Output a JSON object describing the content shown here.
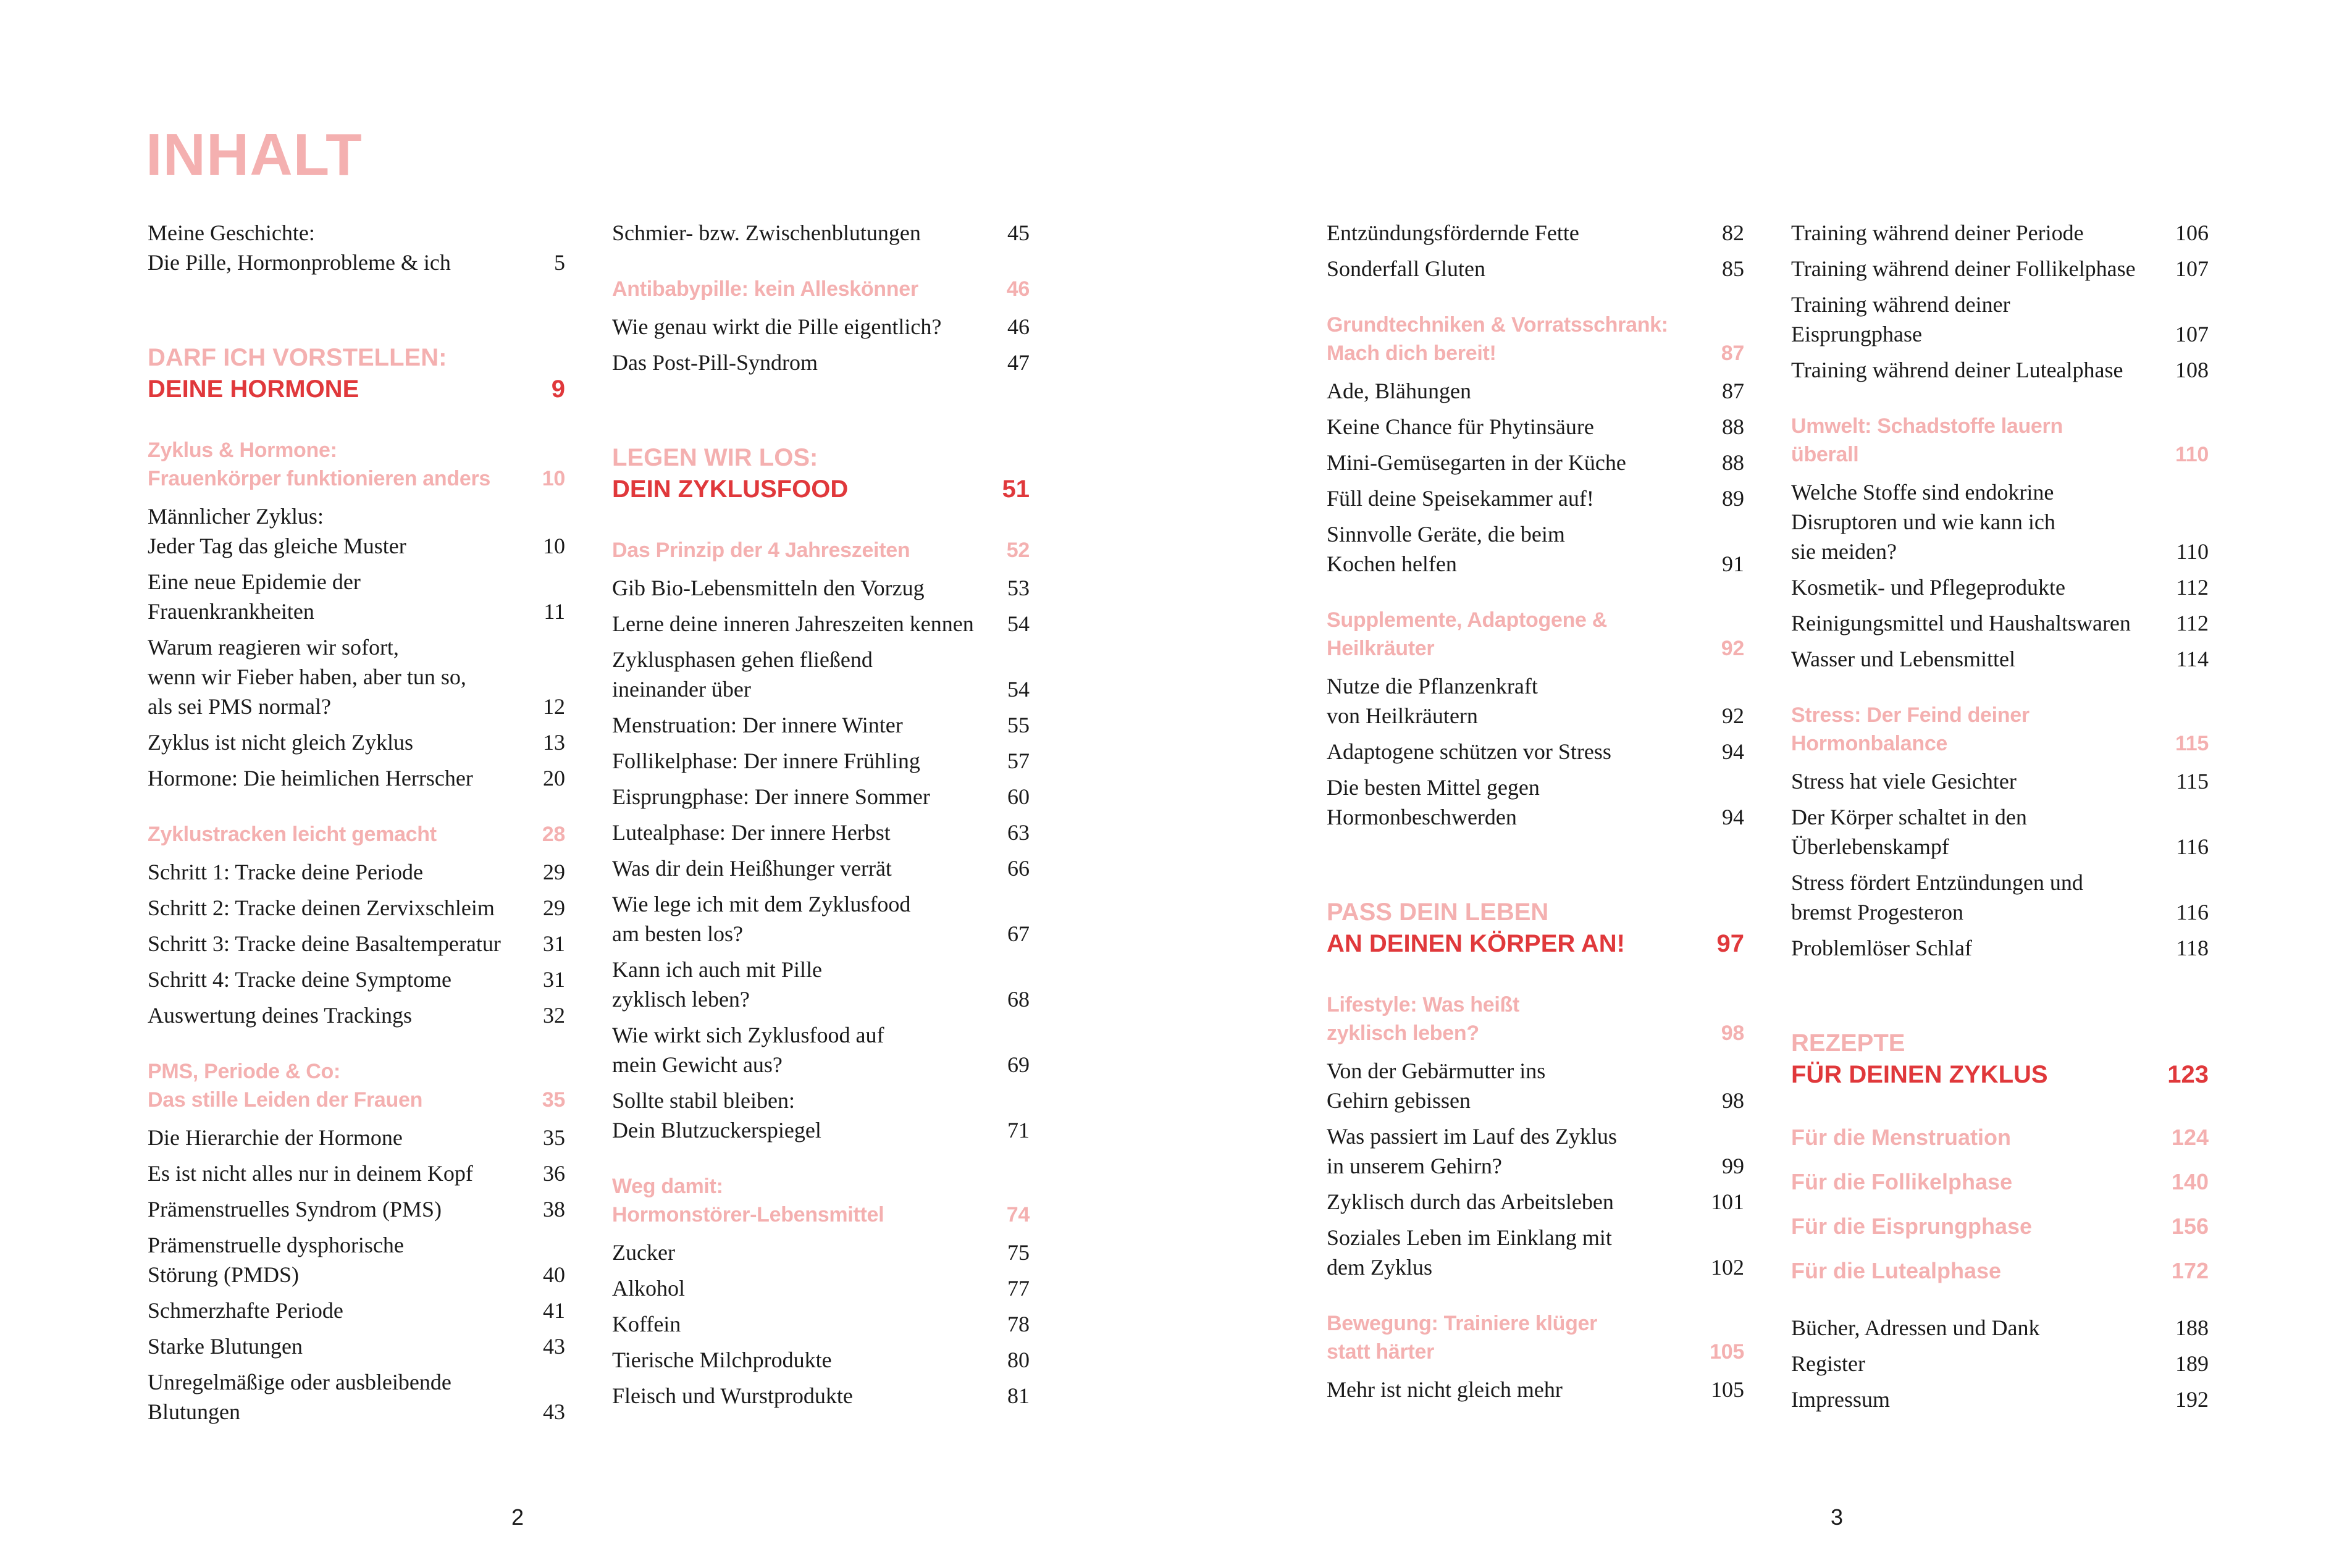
{
  "title": "INHALT",
  "colors": {
    "pink": "#f4b0b0",
    "red": "#e0383b",
    "text": "#1a1a1a"
  },
  "page_numbers": {
    "left": "2",
    "right": "3"
  },
  "columns": [
    [
      {
        "type": "entry",
        "lines": [
          "Meine Geschichte:",
          "Die Pille, Hormonprobleme & ich"
        ],
        "page": "5"
      },
      {
        "type": "part",
        "lines": [
          "DARF ICH VORSTELLEN:",
          "DEINE HORMONE"
        ],
        "page": "9"
      },
      {
        "type": "section",
        "lines": [
          "Zyklus & Hormone:",
          "Frauenkörper funktionieren anders"
        ],
        "page": "10"
      },
      {
        "type": "entry",
        "lines": [
          "Männlicher Zyklus:",
          "Jeder Tag das gleiche Muster"
        ],
        "page": "10"
      },
      {
        "type": "entry",
        "lines": [
          "Eine neue Epidemie der",
          "Frauenkrankheiten"
        ],
        "page": "11"
      },
      {
        "type": "entry",
        "lines": [
          "Warum reagieren wir sofort,",
          "wenn wir Fieber haben, aber tun so,",
          "als sei PMS normal?"
        ],
        "page": "12"
      },
      {
        "type": "entry",
        "lines": [
          "Zyklus ist nicht gleich Zyklus"
        ],
        "page": "13"
      },
      {
        "type": "entry",
        "lines": [
          "Hormone: Die heimlichen Herrscher"
        ],
        "page": "20"
      },
      {
        "type": "section",
        "lines": [
          "Zyklustracken leicht gemacht"
        ],
        "page": "28"
      },
      {
        "type": "entry",
        "lines": [
          "Schritt 1: Tracke deine Periode"
        ],
        "page": "29"
      },
      {
        "type": "entry",
        "lines": [
          "Schritt 2: Tracke deinen Zervixschleim"
        ],
        "page": "29"
      },
      {
        "type": "entry",
        "lines": [
          "Schritt 3: Tracke deine Basaltemperatur"
        ],
        "page": "31"
      },
      {
        "type": "entry",
        "lines": [
          "Schritt 4: Tracke deine Symptome"
        ],
        "page": "31"
      },
      {
        "type": "entry",
        "lines": [
          "Auswertung deines Trackings"
        ],
        "page": "32"
      },
      {
        "type": "section",
        "lines": [
          "PMS, Periode & Co:",
          "Das stille Leiden der Frauen"
        ],
        "page": "35"
      },
      {
        "type": "entry",
        "lines": [
          "Die Hierarchie der Hormone"
        ],
        "page": "35"
      },
      {
        "type": "entry",
        "lines": [
          "Es ist nicht alles nur in deinem Kopf"
        ],
        "page": "36"
      },
      {
        "type": "entry",
        "lines": [
          "Prämenstruelles Syndrom (PMS)"
        ],
        "page": "38"
      },
      {
        "type": "entry",
        "lines": [
          "Prämenstruelle dysphorische",
          "Störung (PMDS)"
        ],
        "page": "40"
      },
      {
        "type": "entry",
        "lines": [
          "Schmerzhafte Periode"
        ],
        "page": "41"
      },
      {
        "type": "entry",
        "lines": [
          "Starke Blutungen"
        ],
        "page": "43"
      },
      {
        "type": "entry",
        "lines": [
          "Unregelmäßige oder ausbleibende",
          "Blutungen"
        ],
        "page": "43"
      }
    ],
    [
      {
        "type": "entry",
        "lines": [
          "Schmier- bzw. Zwischenblutungen"
        ],
        "page": "45"
      },
      {
        "type": "section",
        "lines": [
          "Antibabypille: kein Alleskönner"
        ],
        "page": "46"
      },
      {
        "type": "entry",
        "lines": [
          "Wie genau wirkt die Pille eigentlich?"
        ],
        "page": "46"
      },
      {
        "type": "entry",
        "lines": [
          "Das Post-Pill-Syndrom"
        ],
        "page": "47"
      },
      {
        "type": "part",
        "lines": [
          "LEGEN WIR LOS:",
          "DEIN ZYKLUSFOOD"
        ],
        "page": "51"
      },
      {
        "type": "section",
        "lines": [
          "Das Prinzip der 4 Jahreszeiten"
        ],
        "page": "52"
      },
      {
        "type": "entry",
        "lines": [
          "Gib Bio-Lebensmitteln den Vorzug"
        ],
        "page": "53"
      },
      {
        "type": "entry",
        "lines": [
          "Lerne deine inneren Jahreszeiten kennen"
        ],
        "page": "54"
      },
      {
        "type": "entry",
        "lines": [
          "Zyklusphasen gehen fließend",
          "ineinander über"
        ],
        "page": "54"
      },
      {
        "type": "entry",
        "lines": [
          "Menstruation: Der innere Winter"
        ],
        "page": "55"
      },
      {
        "type": "entry",
        "lines": [
          "Follikelphase: Der innere Frühling"
        ],
        "page": "57"
      },
      {
        "type": "entry",
        "lines": [
          "Eisprungphase: Der innere Sommer"
        ],
        "page": "60"
      },
      {
        "type": "entry",
        "lines": [
          "Lutealphase: Der innere Herbst"
        ],
        "page": "63"
      },
      {
        "type": "entry",
        "lines": [
          "Was dir dein Heißhunger verrät"
        ],
        "page": "66"
      },
      {
        "type": "entry",
        "lines": [
          "Wie lege ich mit dem Zyklusfood",
          "am besten los?"
        ],
        "page": "67"
      },
      {
        "type": "entry",
        "lines": [
          "Kann ich auch mit Pille",
          "zyklisch leben?"
        ],
        "page": "68"
      },
      {
        "type": "entry",
        "lines": [
          "Wie wirkt sich Zyklusfood auf",
          "mein Gewicht aus?"
        ],
        "page": "69"
      },
      {
        "type": "entry",
        "lines": [
          "Sollte stabil bleiben:",
          "Dein Blutzuckerspiegel"
        ],
        "page": "71"
      },
      {
        "type": "section",
        "lines": [
          "Weg damit:",
          "Hormonstörer-Lebensmittel"
        ],
        "page": "74"
      },
      {
        "type": "entry",
        "lines": [
          "Zucker"
        ],
        "page": "75"
      },
      {
        "type": "entry",
        "lines": [
          "Alkohol"
        ],
        "page": "77"
      },
      {
        "type": "entry",
        "lines": [
          "Koffein"
        ],
        "page": "78"
      },
      {
        "type": "entry",
        "lines": [
          "Tierische Milchprodukte"
        ],
        "page": "80"
      },
      {
        "type": "entry",
        "lines": [
          "Fleisch und Wurstprodukte"
        ],
        "page": "81"
      }
    ],
    [
      {
        "type": "entry",
        "lines": [
          "Entzündungsfördernde Fette"
        ],
        "page": "82"
      },
      {
        "type": "entry",
        "lines": [
          "Sonderfall Gluten"
        ],
        "page": "85"
      },
      {
        "type": "section",
        "lines": [
          "Grundtechniken & Vorratsschrank:",
          "Mach dich bereit!"
        ],
        "page": "87"
      },
      {
        "type": "entry",
        "lines": [
          "Ade, Blähungen"
        ],
        "page": "87"
      },
      {
        "type": "entry",
        "lines": [
          "Keine Chance für Phytinsäure"
        ],
        "page": "88"
      },
      {
        "type": "entry",
        "lines": [
          "Mini-Gemüsegarten in der Küche"
        ],
        "page": "88"
      },
      {
        "type": "entry",
        "lines": [
          "Füll deine Speisekammer auf!"
        ],
        "page": "89"
      },
      {
        "type": "entry",
        "lines": [
          "Sinnvolle Geräte, die beim",
          "Kochen helfen"
        ],
        "page": "91"
      },
      {
        "type": "section",
        "lines": [
          "Supplemente, Adaptogene &",
          "Heilkräuter"
        ],
        "page": "92"
      },
      {
        "type": "entry",
        "lines": [
          "Nutze die Pflanzenkraft",
          "von Heilkräutern"
        ],
        "page": "92"
      },
      {
        "type": "entry",
        "lines": [
          "Adaptogene schützen vor Stress"
        ],
        "page": "94"
      },
      {
        "type": "entry",
        "lines": [
          "Die besten Mittel gegen",
          "Hormonbeschwerden"
        ],
        "page": "94"
      },
      {
        "type": "part",
        "lines": [
          "PASS DEIN LEBEN",
          "AN DEINEN KÖRPER AN!"
        ],
        "page": "97"
      },
      {
        "type": "section",
        "lines": [
          "Lifestyle: Was heißt",
          "zyklisch leben?"
        ],
        "page": "98"
      },
      {
        "type": "entry",
        "lines": [
          "Von der Gebärmutter ins",
          "Gehirn gebissen"
        ],
        "page": "98"
      },
      {
        "type": "entry",
        "lines": [
          "Was passiert im Lauf des Zyklus",
          "in unserem Gehirn?"
        ],
        "page": "99"
      },
      {
        "type": "entry",
        "lines": [
          "Zyklisch durch das Arbeitsleben"
        ],
        "page": "101"
      },
      {
        "type": "entry",
        "lines": [
          "Soziales Leben im Einklang mit",
          "dem Zyklus"
        ],
        "page": "102"
      },
      {
        "type": "section",
        "lines": [
          "Bewegung: Trainiere klüger",
          "statt härter"
        ],
        "page": "105"
      },
      {
        "type": "entry",
        "lines": [
          "Mehr ist nicht gleich mehr"
        ],
        "page": "105"
      }
    ],
    [
      {
        "type": "entry",
        "lines": [
          "Training während deiner Periode"
        ],
        "page": "106"
      },
      {
        "type": "entry",
        "lines": [
          "Training während deiner Follikelphase"
        ],
        "page": "107"
      },
      {
        "type": "entry",
        "lines": [
          "Training während deiner",
          "Eisprungphase"
        ],
        "page": "107"
      },
      {
        "type": "entry",
        "lines": [
          "Training während deiner Lutealphase"
        ],
        "page": "108"
      },
      {
        "type": "section",
        "lines": [
          "Umwelt: Schadstoffe lauern",
          "überall"
        ],
        "page": "110"
      },
      {
        "type": "entry",
        "lines": [
          "Welche Stoffe sind endokrine",
          "Disruptoren und wie kann ich",
          "sie meiden?"
        ],
        "page": "110"
      },
      {
        "type": "entry",
        "lines": [
          "Kosmetik- und Pflegeprodukte"
        ],
        "page": "112"
      },
      {
        "type": "entry",
        "lines": [
          "Reinigungsmittel und Haushaltswaren"
        ],
        "page": "112"
      },
      {
        "type": "entry",
        "lines": [
          "Wasser und Lebensmittel"
        ],
        "page": "114"
      },
      {
        "type": "section",
        "lines": [
          "Stress: Der Feind deiner",
          "Hormonbalance"
        ],
        "page": "115"
      },
      {
        "type": "entry",
        "lines": [
          "Stress hat viele Gesichter"
        ],
        "page": "115"
      },
      {
        "type": "entry",
        "lines": [
          "Der Körper schaltet in den",
          "Überlebenskampf"
        ],
        "page": "116"
      },
      {
        "type": "entry",
        "lines": [
          "Stress fördert Entzündungen und",
          "bremst Progesteron"
        ],
        "page": "116"
      },
      {
        "type": "entry",
        "lines": [
          "Problemlöser Schlaf"
        ],
        "page": "118"
      },
      {
        "type": "part",
        "lines": [
          "REZEPTE",
          "FÜR DEINEN ZYKLUS"
        ],
        "page": "123"
      },
      {
        "type": "sub",
        "lines": [
          "Für die Menstruation"
        ],
        "page": "124"
      },
      {
        "type": "sub",
        "lines": [
          "Für die Follikelphase"
        ],
        "page": "140"
      },
      {
        "type": "sub",
        "lines": [
          "Für die Eisprungphase"
        ],
        "page": "156"
      },
      {
        "type": "sub",
        "lines": [
          "Für die Lutealphase"
        ],
        "page": "172"
      },
      {
        "type": "entry",
        "lines": [
          "Bücher, Adressen und Dank"
        ],
        "page": "188"
      },
      {
        "type": "entry",
        "lines": [
          "Register"
        ],
        "page": "189"
      },
      {
        "type": "entry",
        "lines": [
          "Impressum"
        ],
        "page": "192"
      }
    ]
  ]
}
